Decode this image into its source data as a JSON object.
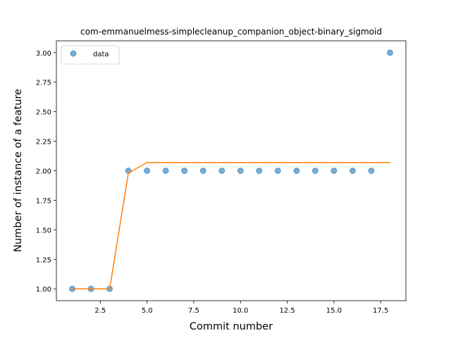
{
  "chart_data": {
    "type": "scatter",
    "title": "com-emmanuelmess-simplecleanup_companion_object-binary_sigmoid",
    "xlabel": "Commit number",
    "ylabel": "Number of instance of a feature",
    "xlim": [
      0.15,
      18.85
    ],
    "ylim": [
      0.9,
      3.1
    ],
    "xticks": [
      2.5,
      5.0,
      7.5,
      10.0,
      12.5,
      15.0,
      17.5
    ],
    "xtick_labels": [
      "2.5",
      "5.0",
      "7.5",
      "10.0",
      "12.5",
      "15.0",
      "17.5"
    ],
    "yticks": [
      1.0,
      1.25,
      1.5,
      1.75,
      2.0,
      2.25,
      2.5,
      2.75,
      3.0
    ],
    "ytick_labels": [
      "1.00",
      "1.25",
      "1.50",
      "1.75",
      "2.00",
      "2.25",
      "2.50",
      "2.75",
      "3.00"
    ],
    "grid": false,
    "legend_position": "top-left",
    "series": [
      {
        "name": "data",
        "kind": "scatter",
        "color": "#1f77b4",
        "x": [
          1,
          2,
          3,
          4,
          5,
          6,
          7,
          8,
          9,
          10,
          11,
          12,
          13,
          14,
          15,
          16,
          17,
          18
        ],
        "y": [
          1,
          1,
          1,
          2,
          2,
          2,
          2,
          2,
          2,
          2,
          2,
          2,
          2,
          2,
          2,
          2,
          2,
          3
        ]
      },
      {
        "kind": "line",
        "color": "#ff7f0e",
        "x": [
          1,
          2,
          3,
          4,
          5,
          6,
          7,
          8,
          9,
          10,
          11,
          12,
          13,
          14,
          15,
          16,
          17,
          18
        ],
        "y": [
          1.0,
          1.0,
          1.0,
          1.98,
          2.07,
          2.07,
          2.07,
          2.07,
          2.07,
          2.07,
          2.07,
          2.07,
          2.07,
          2.07,
          2.07,
          2.07,
          2.07,
          2.07
        ]
      }
    ]
  }
}
